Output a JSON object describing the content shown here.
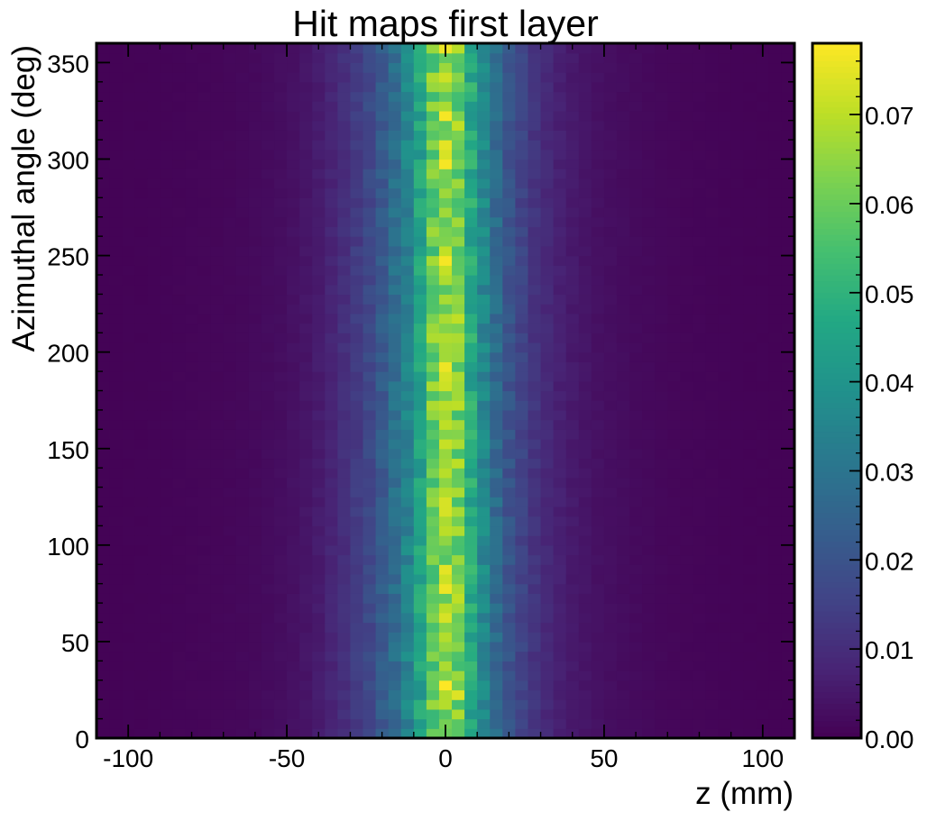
{
  "chart_data": {
    "type": "heatmap",
    "title": "Hit maps first layer",
    "xlabel": "z (mm)",
    "ylabel": "Azimuthal angle (deg)",
    "xlim": [
      -110,
      110
    ],
    "ylim": [
      0,
      360
    ],
    "x_ticks": [
      -100,
      -50,
      0,
      50,
      100
    ],
    "x_tick_labels": [
      "-100",
      "-50",
      "0",
      "50",
      "100"
    ],
    "y_ticks": [
      0,
      50,
      100,
      150,
      200,
      250,
      300,
      350
    ],
    "y_tick_labels": [
      "0",
      "50",
      "100",
      "150",
      "200",
      "250",
      "300",
      "350"
    ],
    "grid": false,
    "colormap": "viridis",
    "colorbar": {
      "range": [
        0.0,
        0.078
      ],
      "ticks": [
        0.0,
        0.01,
        0.02,
        0.03,
        0.04,
        0.05,
        0.06,
        0.07
      ],
      "tick_labels": [
        "0.00",
        "0.01",
        "0.02",
        "0.03",
        "0.04",
        "0.05",
        "0.06",
        "0.07"
      ]
    },
    "bins": {
      "x_edges": [
        -110,
        110
      ],
      "x_count": 55,
      "y_edges": [
        0,
        360
      ],
      "y_count": 72
    },
    "column_profile": [
      {
        "z": -108,
        "value": 0.0005
      },
      {
        "z": -104,
        "value": 0.0005
      },
      {
        "z": -100,
        "value": 0.0006
      },
      {
        "z": -96,
        "value": 0.0006
      },
      {
        "z": -92,
        "value": 0.0007
      },
      {
        "z": -88,
        "value": 0.0008
      },
      {
        "z": -84,
        "value": 0.0009
      },
      {
        "z": -80,
        "value": 0.001
      },
      {
        "z": -76,
        "value": 0.0011
      },
      {
        "z": -72,
        "value": 0.0012
      },
      {
        "z": -68,
        "value": 0.0014
      },
      {
        "z": -64,
        "value": 0.0016
      },
      {
        "z": -60,
        "value": 0.0019
      },
      {
        "z": -56,
        "value": 0.0023
      },
      {
        "z": -52,
        "value": 0.0028
      },
      {
        "z": -48,
        "value": 0.0035
      },
      {
        "z": -44,
        "value": 0.0045
      },
      {
        "z": -40,
        "value": 0.006
      },
      {
        "z": -36,
        "value": 0.008
      },
      {
        "z": -32,
        "value": 0.0105
      },
      {
        "z": -28,
        "value": 0.0135
      },
      {
        "z": -24,
        "value": 0.017
      },
      {
        "z": -20,
        "value": 0.022
      },
      {
        "z": -16,
        "value": 0.028
      },
      {
        "z": -12,
        "value": 0.035
      },
      {
        "z": -8,
        "value": 0.045
      },
      {
        "z": -4,
        "value": 0.06
      },
      {
        "z": 0,
        "value": 0.066
      },
      {
        "z": 4,
        "value": 0.062
      },
      {
        "z": 8,
        "value": 0.047
      },
      {
        "z": 12,
        "value": 0.036
      },
      {
        "z": 16,
        "value": 0.027
      },
      {
        "z": 20,
        "value": 0.02
      },
      {
        "z": 24,
        "value": 0.0155
      },
      {
        "z": 28,
        "value": 0.0118
      },
      {
        "z": 32,
        "value": 0.009
      },
      {
        "z": 36,
        "value": 0.007
      },
      {
        "z": 40,
        "value": 0.0055
      },
      {
        "z": 44,
        "value": 0.0044
      },
      {
        "z": 48,
        "value": 0.0036
      },
      {
        "z": 52,
        "value": 0.003
      },
      {
        "z": 56,
        "value": 0.0025
      },
      {
        "z": 60,
        "value": 0.0021
      },
      {
        "z": 64,
        "value": 0.0018
      },
      {
        "z": 68,
        "value": 0.0015
      },
      {
        "z": 72,
        "value": 0.0013
      },
      {
        "z": 76,
        "value": 0.0011
      },
      {
        "z": 80,
        "value": 0.001
      },
      {
        "z": 84,
        "value": 0.0009
      },
      {
        "z": 88,
        "value": 0.0008
      },
      {
        "z": 92,
        "value": 0.0007
      },
      {
        "z": 96,
        "value": 0.0006
      },
      {
        "z": 100,
        "value": 0.0006
      },
      {
        "z": 104,
        "value": 0.0005
      },
      {
        "z": 108,
        "value": 0.0005
      }
    ],
    "hot_spots": [
      {
        "z": 0,
        "phi": 357.5,
        "value": 0.076
      },
      {
        "z": 0,
        "phi": 322.5,
        "value": 0.077
      },
      {
        "z": 0,
        "phi": 307.5,
        "value": 0.075
      },
      {
        "z": 0,
        "phi": 297.5,
        "value": 0.077
      },
      {
        "z": 0,
        "phi": 247.5,
        "value": 0.077
      },
      {
        "z": 0,
        "phi": 192.5,
        "value": 0.076
      },
      {
        "z": 0,
        "phi": 87.5,
        "value": 0.075
      },
      {
        "z": 0,
        "phi": 77.5,
        "value": 0.076
      },
      {
        "z": 0,
        "phi": 27.5,
        "value": 0.078
      },
      {
        "z": 4,
        "phi": 22.5,
        "value": 0.074
      }
    ]
  }
}
